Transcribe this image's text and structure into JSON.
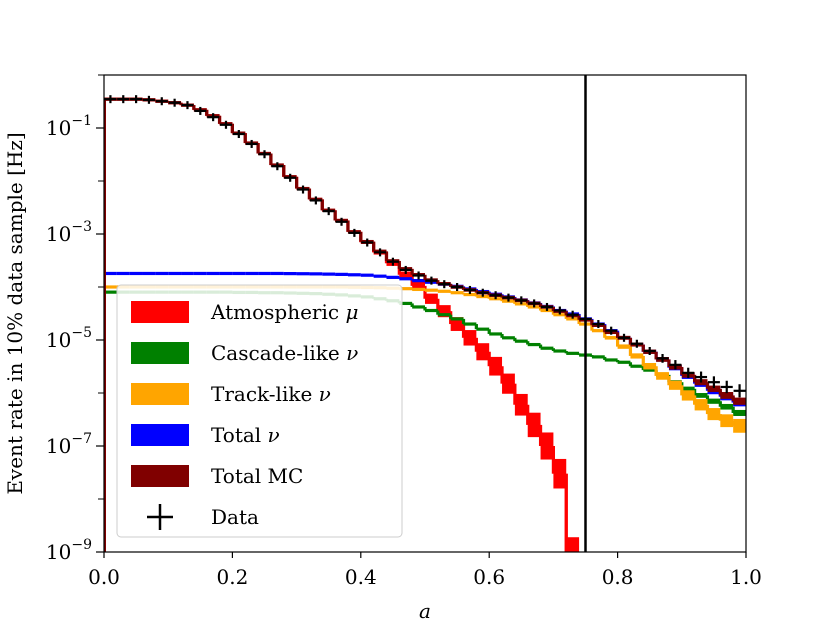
{
  "chart_data": {
    "type": "line",
    "title": "",
    "xlabel": "a",
    "ylabel": "Event rate in 10% data sample [Hz]",
    "xlim": [
      0.0,
      1.0
    ],
    "ylim_log10": [
      -9,
      0
    ],
    "x_ticks": [
      "0.0",
      "0.2",
      "0.4",
      "0.6",
      "0.8",
      "1.0"
    ],
    "y_ticks": [
      {
        "base": "10",
        "exp": "−1",
        "value": 0.1
      },
      {
        "base": "10",
        "exp": "−3",
        "value": 0.001
      },
      {
        "base": "10",
        "exp": "−5",
        "value": 1e-05
      },
      {
        "base": "10",
        "exp": "−7",
        "value": 1e-07
      },
      {
        "base": "10",
        "exp": "−9",
        "value": 1e-09
      }
    ],
    "cut_line_x": 0.75,
    "series": [
      {
        "name": "Atmospheric μ",
        "label_text": "Atmospheric ",
        "label_symbol": "μ",
        "color": "#ff0000",
        "style": "band",
        "bin_edges": [
          0,
          0.02,
          0.04,
          0.06,
          0.08,
          0.1,
          0.12,
          0.14,
          0.16,
          0.18,
          0.2,
          0.22,
          0.24,
          0.26,
          0.28,
          0.3,
          0.32,
          0.34,
          0.36,
          0.38,
          0.4,
          0.42,
          0.44,
          0.46,
          0.48,
          0.5,
          0.52,
          0.54,
          0.56,
          0.58,
          0.6,
          0.62,
          0.64,
          0.66,
          0.68,
          0.7,
          0.72
        ],
        "values": [
          0.35,
          0.35,
          0.35,
          0.34,
          0.32,
          0.3,
          0.27,
          0.22,
          0.17,
          0.12,
          0.08,
          0.052,
          0.033,
          0.02,
          0.012,
          0.0072,
          0.0045,
          0.0028,
          0.0018,
          0.0011,
          0.0007,
          0.00045,
          0.00028,
          0.00017,
          0.000105,
          6e-05,
          3.5e-05,
          2e-05,
          1.1e-05,
          6e-06,
          3.2e-06,
          1.5e-06,
          6e-07,
          2.5e-07,
          1e-07,
          3e-08,
          1e-09
        ],
        "err_rel": [
          0.02,
          0.02,
          0.02,
          0.02,
          0.02,
          0.02,
          0.02,
          0.03,
          0.03,
          0.03,
          0.03,
          0.03,
          0.04,
          0.04,
          0.04,
          0.05,
          0.05,
          0.06,
          0.06,
          0.07,
          0.08,
          0.1,
          0.12,
          0.15,
          0.2,
          0.25,
          0.3,
          0.35,
          0.4,
          0.45,
          0.5,
          0.55,
          0.6,
          0.7,
          0.8,
          0.9,
          0.9
        ]
      },
      {
        "name": "Cascade-like ν",
        "label_text": "Cascade-like ",
        "label_symbol": "ν",
        "color": "#008000",
        "style": "band",
        "bin_edges": [
          0,
          0.02,
          0.04,
          0.06,
          0.08,
          0.1,
          0.12,
          0.14,
          0.16,
          0.18,
          0.2,
          0.22,
          0.24,
          0.26,
          0.28,
          0.3,
          0.32,
          0.34,
          0.36,
          0.38,
          0.4,
          0.42,
          0.44,
          0.46,
          0.48,
          0.5,
          0.52,
          0.54,
          0.56,
          0.58,
          0.6,
          0.62,
          0.64,
          0.66,
          0.68,
          0.7,
          0.72,
          0.74,
          0.76,
          0.78,
          0.8,
          0.82,
          0.84,
          0.86,
          0.88,
          0.9,
          0.92,
          0.94,
          0.96,
          0.98,
          1.0
        ],
        "values": [
          8e-05,
          8e-05,
          8e-05,
          8e-05,
          8e-05,
          8e-05,
          8e-05,
          8e-05,
          8e-05,
          8e-05,
          7.9e-05,
          7.9e-05,
          7.8e-05,
          7.8e-05,
          7.7e-05,
          7.6e-05,
          7.5e-05,
          7.3e-05,
          7.1e-05,
          6.8e-05,
          6.5e-05,
          6e-05,
          5.5e-05,
          4.9e-05,
          4.2e-05,
          3.6e-05,
          3e-05,
          2.5e-05,
          2e-05,
          1.6e-05,
          1.3e-05,
          1.1e-05,
          9.5e-06,
          8.2e-06,
          7e-06,
          6.2e-06,
          5.6e-06,
          5.2e-06,
          4.8e-06,
          4.2e-06,
          3.8e-06,
          3.2e-06,
          2.7e-06,
          2.2e-06,
          1.6e-06,
          1.2e-06,
          9e-07,
          7e-07,
          5.5e-07,
          4.2e-07
        ],
        "err_rel": [
          0.02,
          0.02,
          0.02,
          0.02,
          0.02,
          0.02,
          0.02,
          0.02,
          0.02,
          0.02,
          0.02,
          0.02,
          0.02,
          0.02,
          0.02,
          0.02,
          0.02,
          0.02,
          0.02,
          0.02,
          0.02,
          0.02,
          0.02,
          0.02,
          0.02,
          0.03,
          0.03,
          0.03,
          0.03,
          0.03,
          0.03,
          0.03,
          0.03,
          0.04,
          0.04,
          0.04,
          0.04,
          0.05,
          0.05,
          0.05,
          0.06,
          0.06,
          0.07,
          0.08,
          0.09,
          0.1,
          0.11,
          0.12,
          0.13,
          0.14
        ]
      },
      {
        "name": "Track-like ν",
        "label_text": "Track-like ",
        "label_symbol": "ν",
        "color": "#ffa500",
        "style": "band",
        "bin_edges": [
          0,
          0.02,
          0.04,
          0.06,
          0.08,
          0.1,
          0.12,
          0.14,
          0.16,
          0.18,
          0.2,
          0.22,
          0.24,
          0.26,
          0.28,
          0.3,
          0.32,
          0.34,
          0.36,
          0.38,
          0.4,
          0.42,
          0.44,
          0.46,
          0.48,
          0.5,
          0.52,
          0.54,
          0.56,
          0.58,
          0.6,
          0.62,
          0.64,
          0.66,
          0.68,
          0.7,
          0.72,
          0.74,
          0.76,
          0.78,
          0.8,
          0.82,
          0.84,
          0.86,
          0.88,
          0.9,
          0.92,
          0.94,
          0.96,
          0.98,
          1.0
        ],
        "values": [
          0.0001,
          0.0001,
          0.0001,
          0.0001,
          0.0001,
          0.0001,
          0.0001,
          0.0001,
          0.0001,
          0.0001,
          0.0001,
          0.0001,
          0.0001,
          0.0001,
          0.0001,
          0.0001,
          0.0001,
          0.0001,
          0.0001,
          9.9e-05,
          9.8e-05,
          9.7e-05,
          9.5e-05,
          9.3e-05,
          9e-05,
          8.7e-05,
          8.3e-05,
          7.8e-05,
          7.2e-05,
          6.6e-05,
          6e-05,
          5.4e-05,
          4.8e-05,
          4.2e-05,
          3.6e-05,
          3e-05,
          2.5e-05,
          2e-05,
          1.5e-05,
          1.1e-05,
          7.5e-06,
          5e-06,
          3.2e-06,
          2.1e-06,
          1.4e-06,
          9e-07,
          6e-07,
          4e-07,
          3e-07,
          2.4e-07
        ],
        "err_rel": [
          0.02,
          0.02,
          0.02,
          0.02,
          0.02,
          0.02,
          0.02,
          0.02,
          0.02,
          0.02,
          0.02,
          0.02,
          0.02,
          0.02,
          0.02,
          0.02,
          0.02,
          0.02,
          0.02,
          0.02,
          0.02,
          0.02,
          0.02,
          0.02,
          0.02,
          0.03,
          0.03,
          0.03,
          0.03,
          0.03,
          0.03,
          0.04,
          0.04,
          0.04,
          0.05,
          0.05,
          0.05,
          0.06,
          0.07,
          0.08,
          0.1,
          0.12,
          0.15,
          0.18,
          0.22,
          0.25,
          0.28,
          0.3,
          0.32,
          0.35
        ]
      },
      {
        "name": "Total ν",
        "label_text": "Total ",
        "label_symbol": "ν",
        "color": "#0000ff",
        "style": "band",
        "bin_edges": [
          0,
          0.02,
          0.04,
          0.06,
          0.08,
          0.1,
          0.12,
          0.14,
          0.16,
          0.18,
          0.2,
          0.22,
          0.24,
          0.26,
          0.28,
          0.3,
          0.32,
          0.34,
          0.36,
          0.38,
          0.4,
          0.42,
          0.44,
          0.46,
          0.48,
          0.5,
          0.52,
          0.54,
          0.56,
          0.58,
          0.6,
          0.62,
          0.64,
          0.66,
          0.68,
          0.7,
          0.72,
          0.74,
          0.76,
          0.78,
          0.8,
          0.82,
          0.84,
          0.86,
          0.88,
          0.9,
          0.92,
          0.94,
          0.96,
          0.98,
          1.0
        ],
        "values": [
          0.00018,
          0.00018,
          0.00018,
          0.00018,
          0.00018,
          0.00018,
          0.00018,
          0.00018,
          0.00018,
          0.00018,
          0.00018,
          0.00018,
          0.00018,
          0.00018,
          0.000179,
          0.000178,
          0.000177,
          0.000175,
          0.000173,
          0.00017,
          0.000167,
          0.00016,
          0.000152,
          0.000143,
          0.000132,
          0.000123,
          0.000113,
          0.000103,
          9.2e-05,
          8.2e-05,
          7.3e-05,
          6.5e-05,
          5.7e-05,
          5e-05,
          4.3e-05,
          3.6e-05,
          3.1e-05,
          2.5e-05,
          2e-05,
          1.5e-05,
          1.1e-05,
          8.2e-06,
          6e-06,
          4.3e-06,
          3e-06,
          2.1e-06,
          1.5e-06,
          1.1e-06,
          8.5e-07,
          6.6e-07
        ],
        "err_rel": [
          0.02,
          0.02,
          0.02,
          0.02,
          0.02,
          0.02,
          0.02,
          0.02,
          0.02,
          0.02,
          0.02,
          0.02,
          0.02,
          0.02,
          0.02,
          0.02,
          0.02,
          0.02,
          0.02,
          0.02,
          0.02,
          0.02,
          0.02,
          0.02,
          0.02,
          0.02,
          0.02,
          0.02,
          0.02,
          0.02,
          0.03,
          0.03,
          0.03,
          0.03,
          0.04,
          0.04,
          0.04,
          0.05,
          0.05,
          0.06,
          0.07,
          0.08,
          0.09,
          0.1,
          0.12,
          0.14,
          0.15,
          0.16,
          0.17,
          0.18
        ]
      },
      {
        "name": "Total MC",
        "label_text": "Total MC",
        "label_symbol": "",
        "color": "#800000",
        "style": "band",
        "bin_edges": [
          0,
          0.02,
          0.04,
          0.06,
          0.08,
          0.1,
          0.12,
          0.14,
          0.16,
          0.18,
          0.2,
          0.22,
          0.24,
          0.26,
          0.28,
          0.3,
          0.32,
          0.34,
          0.36,
          0.38,
          0.4,
          0.42,
          0.44,
          0.46,
          0.48,
          0.5,
          0.52,
          0.54,
          0.56,
          0.58,
          0.6,
          0.62,
          0.64,
          0.66,
          0.68,
          0.7,
          0.72,
          0.74,
          0.76,
          0.78,
          0.8,
          0.82,
          0.84,
          0.86,
          0.88,
          0.9,
          0.92,
          0.94,
          0.96,
          0.98,
          1.0
        ],
        "values": [
          0.35,
          0.35,
          0.35,
          0.34,
          0.32,
          0.3,
          0.27,
          0.22,
          0.17,
          0.12,
          0.08,
          0.052,
          0.033,
          0.02,
          0.012,
          0.0072,
          0.0045,
          0.0028,
          0.0018,
          0.0011,
          0.00072,
          0.00047,
          0.00031,
          0.00022,
          0.00017,
          0.000135,
          0.000115,
          0.0001,
          8.8e-05,
          7.8e-05,
          7e-05,
          6.3e-05,
          5.6e-05,
          4.9e-05,
          4.2e-05,
          3.5e-05,
          2.9e-05,
          2.4e-05,
          1.9e-05,
          1.4e-05,
          1.1e-05,
          8.2e-06,
          6e-06,
          4.3e-06,
          3.1e-06,
          2.2e-06,
          1.6e-06,
          1.2e-06,
          9e-07,
          7e-07
        ],
        "err_rel": [
          0.03,
          0.03,
          0.03,
          0.03,
          0.03,
          0.03,
          0.03,
          0.03,
          0.03,
          0.03,
          0.03,
          0.03,
          0.04,
          0.04,
          0.04,
          0.05,
          0.05,
          0.06,
          0.06,
          0.07,
          0.07,
          0.08,
          0.08,
          0.08,
          0.08,
          0.08,
          0.08,
          0.08,
          0.08,
          0.08,
          0.08,
          0.08,
          0.08,
          0.08,
          0.08,
          0.08,
          0.08,
          0.08,
          0.08,
          0.08,
          0.09,
          0.09,
          0.1,
          0.11,
          0.12,
          0.13,
          0.14,
          0.15,
          0.16,
          0.17
        ]
      },
      {
        "name": "Data",
        "label_text": "Data",
        "label_symbol": "",
        "color": "#000000",
        "style": "points",
        "x": [
          0.01,
          0.03,
          0.05,
          0.07,
          0.09,
          0.11,
          0.13,
          0.15,
          0.17,
          0.19,
          0.21,
          0.23,
          0.25,
          0.27,
          0.29,
          0.31,
          0.33,
          0.35,
          0.37,
          0.39,
          0.41,
          0.43,
          0.45,
          0.47,
          0.49,
          0.51,
          0.53,
          0.55,
          0.57,
          0.59,
          0.61,
          0.63,
          0.65,
          0.67,
          0.69,
          0.71,
          0.73,
          0.75,
          0.77,
          0.79,
          0.81,
          0.83,
          0.85,
          0.87,
          0.89,
          0.91,
          0.93,
          0.95,
          0.97,
          0.99
        ],
        "y": [
          0.35,
          0.35,
          0.35,
          0.34,
          0.32,
          0.3,
          0.27,
          0.21,
          0.16,
          0.115,
          0.077,
          0.05,
          0.032,
          0.019,
          0.0115,
          0.0069,
          0.0043,
          0.0027,
          0.0017,
          0.00105,
          0.00069,
          0.00045,
          0.0003,
          0.00021,
          0.000165,
          0.000132,
          0.000113,
          0.0001,
          8.8e-05,
          7.8e-05,
          7e-05,
          6.3e-05,
          5.6e-05,
          4.9e-05,
          4.2e-05,
          3.6e-05,
          3e-05,
          2.5e-05,
          2e-05,
          1.5e-05,
          1.1e-05,
          8.5e-06,
          6.2e-06,
          4.5e-06,
          3.4e-06,
          2.4e-06,
          2e-06,
          1.6e-06,
          1.3e-06,
          1.1e-06
        ],
        "yerr_rel": [
          0.01,
          0.01,
          0.01,
          0.01,
          0.01,
          0.01,
          0.01,
          0.01,
          0.01,
          0.01,
          0.01,
          0.01,
          0.01,
          0.01,
          0.01,
          0.01,
          0.02,
          0.02,
          0.02,
          0.02,
          0.03,
          0.03,
          0.03,
          0.04,
          0.04,
          0.05,
          0.05,
          0.05,
          0.06,
          0.06,
          0.07,
          0.07,
          0.08,
          0.08,
          0.09,
          0.1,
          0.11,
          0.12,
          0.13,
          0.14,
          0.15,
          0.17,
          0.19,
          0.21,
          0.23,
          0.25,
          0.27,
          0.29,
          0.31,
          0.33
        ]
      }
    ],
    "legend": {
      "placement": "lower-left",
      "entries": [
        "Atmospheric μ",
        "Cascade-like ν",
        "Track-like ν",
        "Total ν",
        "Total MC",
        "Data"
      ]
    }
  }
}
